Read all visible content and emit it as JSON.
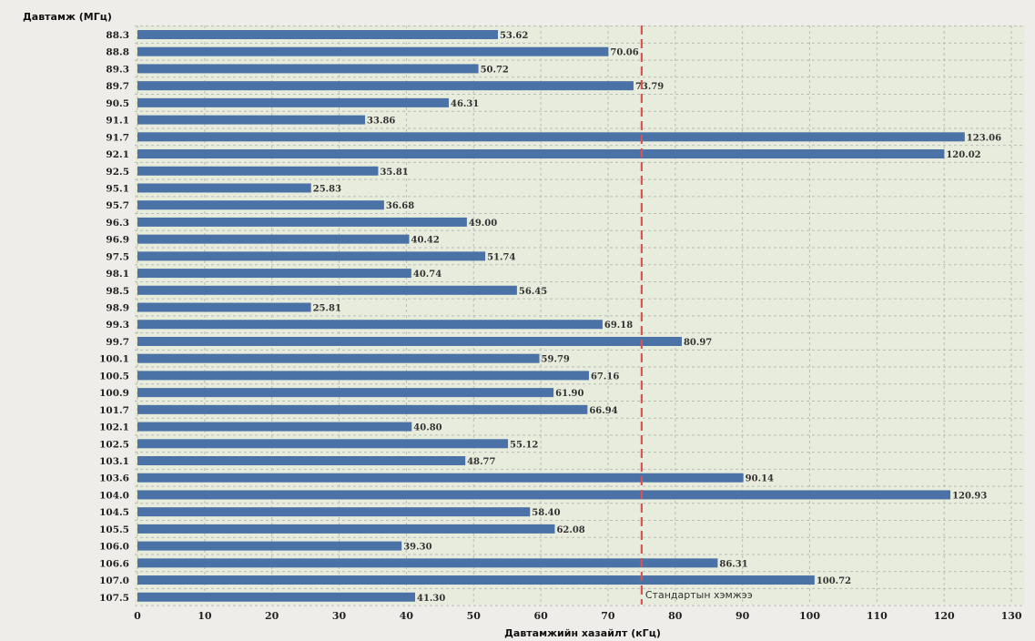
{
  "chart_data": {
    "type": "bar",
    "orientation": "horizontal",
    "ylabel": "Давтамж (МГц)",
    "xlabel": "Давтамжийн хазайлт (кГц)",
    "categories": [
      "88.3",
      "88.8",
      "89.3",
      "89.7",
      "90.5",
      "91.1",
      "91.7",
      "92.1",
      "92.5",
      "95.1",
      "95.7",
      "96.3",
      "96.9",
      "97.5",
      "98.1",
      "98.5",
      "98.9",
      "99.3",
      "99.7",
      "100.1",
      "100.5",
      "100.9",
      "101.7",
      "102.1",
      "102.5",
      "103.1",
      "103.6",
      "104.0",
      "104.5",
      "105.5",
      "106.0",
      "106.6",
      "107.0",
      "107.5"
    ],
    "values": [
      53.62,
      70.06,
      50.72,
      73.79,
      46.31,
      33.86,
      123.06,
      120.02,
      35.81,
      25.83,
      36.68,
      49.0,
      40.42,
      51.74,
      40.74,
      56.45,
      25.81,
      69.18,
      80.97,
      59.79,
      67.16,
      61.9,
      66.94,
      40.8,
      55.12,
      48.77,
      90.14,
      120.93,
      58.4,
      62.08,
      39.3,
      86.31,
      100.72,
      41.3
    ],
    "value_labels": [
      "53.62",
      "70.06",
      "50.72",
      "73.79",
      "46.31",
      "33.86",
      "123.06",
      "120.02",
      "35.81",
      "25.83",
      "36.68",
      "49.00",
      "40.42",
      "51.74",
      "40.74",
      "56.45",
      "25.81",
      "69.18",
      "80.97",
      "59.79",
      "67.16",
      "61.90",
      "66.94",
      "40.80",
      "55.12",
      "48.77",
      "90.14",
      "120.93",
      "58.40",
      "62.08",
      "39.30",
      "86.31",
      "100.72",
      "41.30"
    ],
    "xlim": [
      0,
      132
    ],
    "xticks": [
      "0",
      "10",
      "20",
      "30",
      "40",
      "50",
      "60",
      "70",
      "80",
      "90",
      "100",
      "110",
      "120",
      "130"
    ],
    "grid": true,
    "reference_line": {
      "value": 75,
      "label": "Стандартын хэмжээ",
      "color": "#e05050"
    },
    "bar_color": "#4a72a6",
    "plot_background": "#e8ecdc"
  }
}
